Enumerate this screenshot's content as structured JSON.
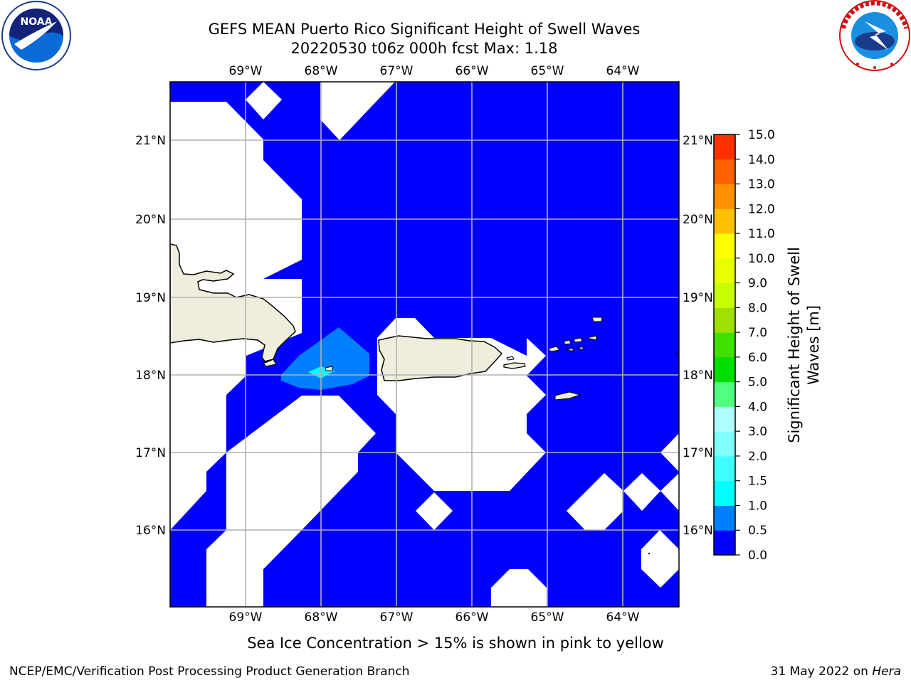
{
  "header": {
    "title_line1": "GEFS MEAN Puerto Rico Significant Height of Swell Waves",
    "title_line2": "20220530 t06z 000h fcst   Max: 1.18"
  },
  "logos": {
    "noara_text": "NOAA",
    "noaa_ring_text": "NATIONAL OCEANIC AND ATMOSPHERIC ADMINISTRATION · U.S. DEPARTMENT OF COMMERCE",
    "nws_ring_text": "NATIONAL WEATHER SERVICE"
  },
  "map": {
    "lon_labels": [
      "69°W",
      "68°W",
      "67°W",
      "66°W",
      "65°W",
      "64°W"
    ],
    "lat_labels": [
      "21°N",
      "20°N",
      "19°N",
      "18°N",
      "17°N",
      "16°N"
    ],
    "ocean_color": "#0000ff",
    "land_color": "#efeedd",
    "mask_color": "#ffffff",
    "swell_patch_colors": [
      "#0080ff",
      "#00ffff"
    ]
  },
  "colorbar": {
    "label_line1": "Significant Height of Swell",
    "label_line2": "Waves [m]",
    "ticks": [
      "0.0",
      "0.5",
      "1.0",
      "1.5",
      "2.0",
      "3.0",
      "4.0",
      "5.0",
      "6.0",
      "7.0",
      "8.0",
      "9.0",
      "10.0",
      "11.0",
      "12.0",
      "13.0",
      "14.0",
      "15.0"
    ],
    "colors": [
      "#0000ff",
      "#0080ff",
      "#00ffff",
      "#40ffff",
      "#80ffff",
      "#b0ffff",
      "#50ff80",
      "#00e000",
      "#40e000",
      "#a0e000",
      "#c8ff00",
      "#e8ff00",
      "#ffff00",
      "#ffc000",
      "#ff9000",
      "#ff6000",
      "#ff3000",
      "#ff0000"
    ]
  },
  "footer": {
    "note": "Sea Ice Concentration > 15% is shown in pink to yellow",
    "credit": "NCEP/EMC/Verification Post Processing Product Generation Branch",
    "date": "31 May 2022 on ",
    "machine": "Hera"
  }
}
